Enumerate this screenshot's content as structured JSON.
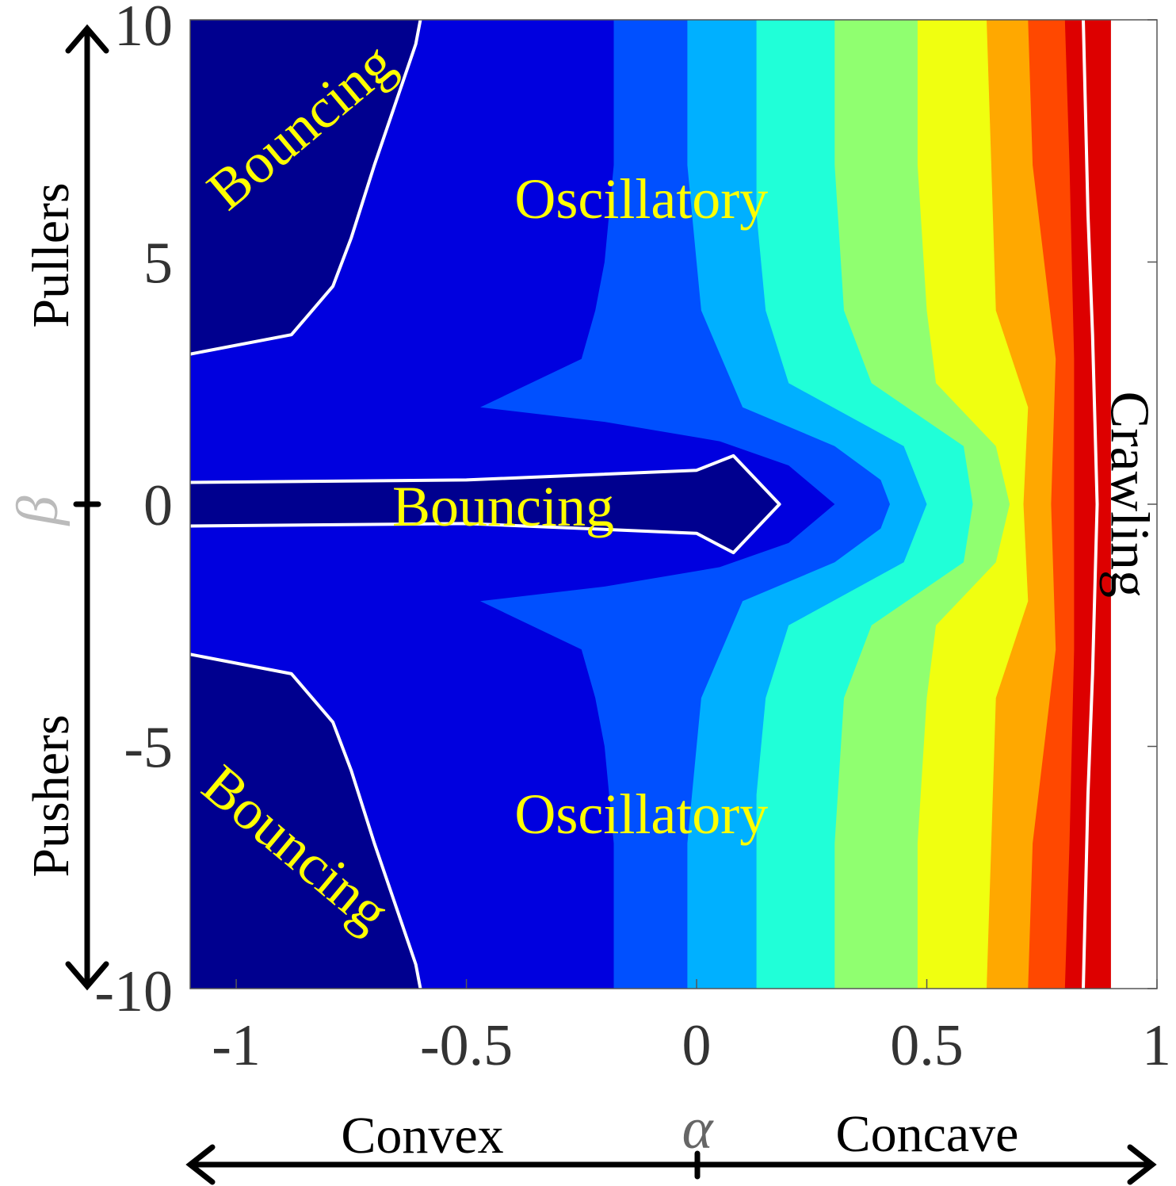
{
  "chart_data": {
    "type": "contour",
    "xlabel": "α",
    "ylabel": "β",
    "xlim": [
      -1.1,
      1.0
    ],
    "ylim": [
      -10,
      10
    ],
    "x_ticks": [
      {
        "value": -1,
        "label": "-1"
      },
      {
        "value": -0.5,
        "label": "-0.5"
      },
      {
        "value": 0,
        "label": "0"
      },
      {
        "value": 0.5,
        "label": "0.5"
      },
      {
        "value": 1,
        "label": "1"
      }
    ],
    "y_ticks": [
      {
        "value": 10,
        "label": "10"
      },
      {
        "value": 5,
        "label": "5"
      },
      {
        "value": 0,
        "label": "0"
      },
      {
        "value": -5,
        "label": "-5"
      },
      {
        "value": -10,
        "label": "-10"
      }
    ],
    "x_side_labels": {
      "left": "Convex",
      "right": "Concave"
    },
    "y_side_labels": {
      "top": "Pullers",
      "bottom": "Pushers"
    },
    "colormap": [
      "#00008f",
      "#0000df",
      "#0050ff",
      "#00b0ff",
      "#20ffd8",
      "#90ff70",
      "#f0ff10",
      "#ffa800",
      "#ff4800",
      "#dd0000"
    ],
    "colors": {
      "label_text": "#ffff00",
      "boundary": "#ffffff",
      "axis": "#000000"
    },
    "bands": [
      {
        "level": 1,
        "color": "#0000df",
        "boundary": [
          [
            -0.6,
            10
          ],
          [
            -0.61,
            9.5
          ],
          [
            -0.7,
            7
          ],
          [
            -0.75,
            5.5
          ],
          [
            -0.79,
            4.5
          ],
          [
            -0.88,
            3.5
          ],
          [
            -1.1,
            3.1
          ],
          [
            -1.1,
            -3.1
          ],
          [
            -0.88,
            -3.5
          ],
          [
            -0.79,
            -4.5
          ],
          [
            -0.75,
            -5.5
          ],
          [
            -0.7,
            -7
          ],
          [
            -0.61,
            -9.5
          ],
          [
            -0.6,
            -10
          ]
        ]
      },
      {
        "level": 2,
        "color": "#0050ff",
        "boundary": [
          [
            -0.18,
            10
          ],
          [
            -0.18,
            7
          ],
          [
            -0.2,
            5
          ],
          [
            -0.22,
            4
          ],
          [
            -0.25,
            3
          ],
          [
            -0.47,
            2
          ],
          [
            -0.2,
            1.7
          ],
          [
            0.05,
            1.3
          ],
          [
            0.2,
            0.8
          ],
          [
            0.3,
            0
          ],
          [
            0.2,
            -0.8
          ],
          [
            0.05,
            -1.3
          ],
          [
            -0.2,
            -1.7
          ],
          [
            -0.47,
            -2
          ],
          [
            -0.25,
            -3
          ],
          [
            -0.22,
            -4
          ],
          [
            -0.2,
            -5
          ],
          [
            -0.18,
            -7
          ],
          [
            -0.18,
            -10
          ]
        ]
      },
      {
        "level": 3,
        "color": "#00b0ff",
        "boundary": [
          [
            -0.02,
            10
          ],
          [
            -0.02,
            7
          ],
          [
            0,
            5
          ],
          [
            0.01,
            4
          ],
          [
            0.1,
            2
          ],
          [
            0.3,
            1.2
          ],
          [
            0.4,
            0.5
          ],
          [
            0.42,
            0
          ],
          [
            0.4,
            -0.5
          ],
          [
            0.3,
            -1.2
          ],
          [
            0.1,
            -2
          ],
          [
            0.01,
            -4
          ],
          [
            0,
            -5
          ],
          [
            -0.02,
            -7
          ],
          [
            -0.02,
            -10
          ]
        ]
      },
      {
        "level": 4,
        "color": "#20ffd8",
        "boundary": [
          [
            0.13,
            10
          ],
          [
            0.13,
            6
          ],
          [
            0.15,
            4
          ],
          [
            0.2,
            2.5
          ],
          [
            0.45,
            1.2
          ],
          [
            0.5,
            0
          ],
          [
            0.45,
            -1.2
          ],
          [
            0.2,
            -2.5
          ],
          [
            0.15,
            -4
          ],
          [
            0.13,
            -6
          ],
          [
            0.13,
            -10
          ]
        ]
      },
      {
        "level": 5,
        "color": "#90ff70",
        "boundary": [
          [
            0.3,
            10
          ],
          [
            0.3,
            7
          ],
          [
            0.32,
            4
          ],
          [
            0.38,
            2.5
          ],
          [
            0.58,
            1.2
          ],
          [
            0.6,
            0
          ],
          [
            0.58,
            -1.2
          ],
          [
            0.38,
            -2.5
          ],
          [
            0.32,
            -4
          ],
          [
            0.3,
            -7
          ],
          [
            0.3,
            -10
          ]
        ]
      },
      {
        "level": 6,
        "color": "#f0ff10",
        "boundary": [
          [
            0.48,
            10
          ],
          [
            0.48,
            7
          ],
          [
            0.5,
            4
          ],
          [
            0.52,
            2.5
          ],
          [
            0.65,
            1.2
          ],
          [
            0.68,
            0
          ],
          [
            0.65,
            -1.2
          ],
          [
            0.52,
            -2.5
          ],
          [
            0.5,
            -4
          ],
          [
            0.48,
            -7
          ],
          [
            0.48,
            -10
          ]
        ]
      },
      {
        "level": 7,
        "color": "#ffa800",
        "boundary": [
          [
            0.63,
            10
          ],
          [
            0.64,
            7
          ],
          [
            0.65,
            4
          ],
          [
            0.72,
            2
          ],
          [
            0.71,
            0
          ],
          [
            0.72,
            -2
          ],
          [
            0.65,
            -4
          ],
          [
            0.64,
            -7
          ],
          [
            0.63,
            -10
          ]
        ]
      },
      {
        "level": 8,
        "color": "#ff4800",
        "boundary": [
          [
            0.72,
            10
          ],
          [
            0.73,
            7
          ],
          [
            0.78,
            3
          ],
          [
            0.77,
            0
          ],
          [
            0.78,
            -3
          ],
          [
            0.73,
            -7
          ],
          [
            0.72,
            -10
          ]
        ]
      },
      {
        "level": 9,
        "color": "#dd0000",
        "boundary": [
          [
            0.8,
            10
          ],
          [
            0.81,
            7
          ],
          [
            0.82,
            3
          ],
          [
            0.82,
            -3
          ],
          [
            0.81,
            -7
          ],
          [
            0.8,
            -10
          ]
        ]
      }
    ],
    "regime_boundaries": [
      {
        "name": "bouncing-top",
        "points": [
          [
            -0.6,
            10
          ],
          [
            -0.61,
            9.5
          ],
          [
            -0.7,
            7
          ],
          [
            -0.75,
            5.5
          ],
          [
            -0.79,
            4.5
          ],
          [
            -0.88,
            3.5
          ],
          [
            -1.1,
            3.1
          ]
        ]
      },
      {
        "name": "bouncing-bottom",
        "points": [
          [
            -0.6,
            -10
          ],
          [
            -0.61,
            -9.5
          ],
          [
            -0.7,
            -7
          ],
          [
            -0.75,
            -5.5
          ],
          [
            -0.79,
            -4.5
          ],
          [
            -0.88,
            -3.5
          ],
          [
            -1.1,
            -3.1
          ]
        ]
      },
      {
        "name": "bouncing-center",
        "points": [
          [
            -1.1,
            0.45
          ],
          [
            -0.5,
            0.5
          ],
          [
            0,
            0.7
          ],
          [
            0.08,
            1.0
          ],
          [
            0.18,
            0
          ],
          [
            0.08,
            -1.0
          ],
          [
            0,
            -0.6
          ],
          [
            -0.5,
            -0.4
          ],
          [
            -1.1,
            -0.45
          ]
        ]
      },
      {
        "name": "crawling",
        "points": [
          [
            0.84,
            10
          ],
          [
            0.85,
            6
          ],
          [
            0.86,
            3.5
          ],
          [
            0.87,
            0
          ],
          [
            0.86,
            -3.5
          ],
          [
            0.85,
            -6
          ],
          [
            0.84,
            -10
          ]
        ]
      }
    ],
    "crawling_min_alpha": 0.9,
    "annotations": [
      {
        "text": "Bouncing",
        "x": -0.86,
        "y": 7.8,
        "rotation": -40
      },
      {
        "text": "Oscillatory",
        "x": -0.12,
        "y": 6.3,
        "rotation": 0
      },
      {
        "text": "Bouncing",
        "x": -0.42,
        "y": -0.05,
        "rotation": 0
      },
      {
        "text": "Oscillatory",
        "x": -0.12,
        "y": -6.4,
        "rotation": 0
      },
      {
        "text": "Bouncing",
        "x": -0.87,
        "y": -7.1,
        "rotation": 40
      },
      {
        "text": "Crawling",
        "x": 0.94,
        "y": 0.2,
        "rotation": 90
      }
    ]
  }
}
